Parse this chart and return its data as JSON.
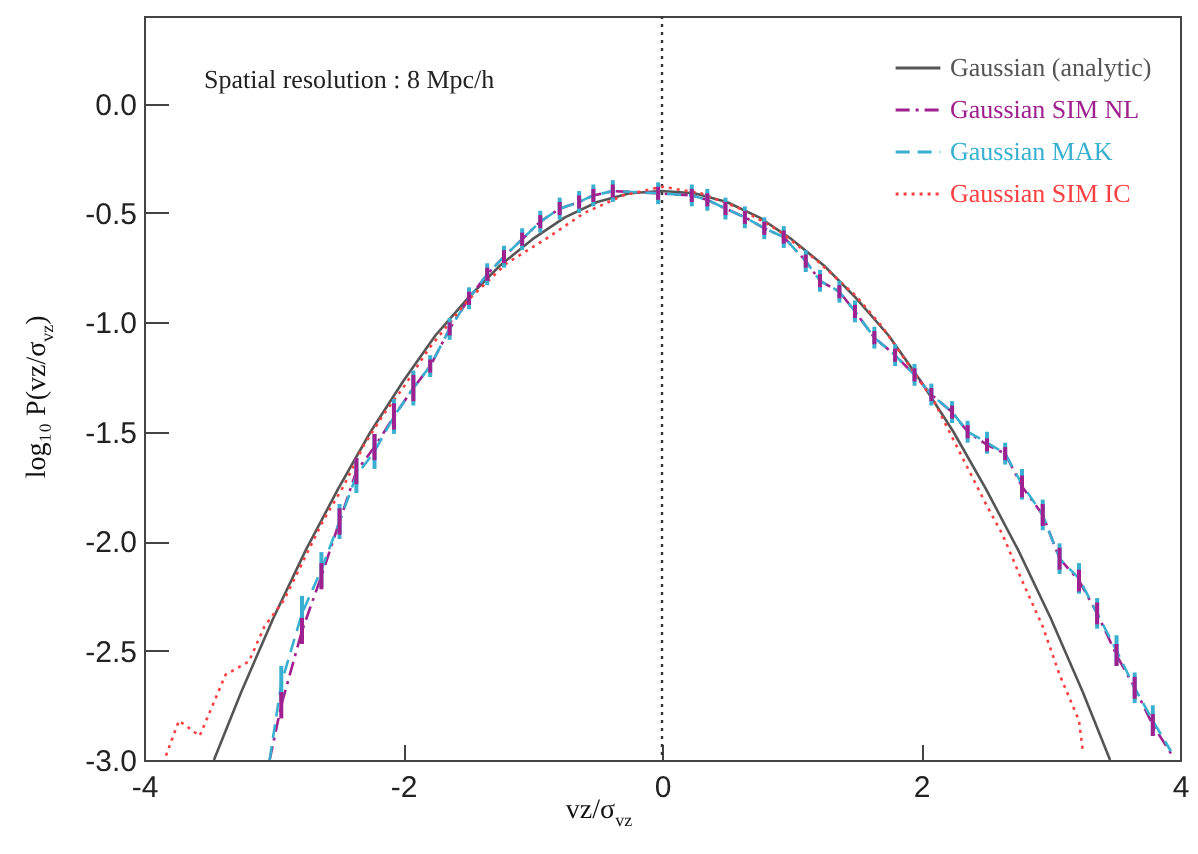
{
  "chart_data": {
    "type": "line",
    "xlabel": "vz/σ$_{vz}$",
    "ylabel": "log₁₀ P(vz/σ$_{vz}$)",
    "annotations": [
      "Spatial resolution : 8 Mpc/h"
    ],
    "xlim": [
      -4,
      4
    ],
    "xticks": [
      -4,
      -2,
      0,
      2,
      4
    ],
    "ylim": [
      -3,
      0.4
    ],
    "yticks": [
      {
        "value": 0,
        "label": "0.0"
      },
      {
        "value": -0.5,
        "label": "-0.5"
      },
      {
        "value": -1,
        "label": "-1.0"
      },
      {
        "value": -1.5,
        "label": "-1.5"
      },
      {
        "value": -2,
        "label": "-2.0"
      },
      {
        "value": -2.5,
        "label": "-2.5"
      },
      {
        "value": -3,
        "label": "-3.0"
      }
    ],
    "grid": false,
    "legend": "top right",
    "marker": "none",
    "ref_lines": [
      {
        "axis": "x",
        "value": 0,
        "color": "#333333",
        "line_style": "dotted"
      }
    ],
    "series": [
      {
        "name": "Gaussian (analytic)",
        "color": "#555555",
        "line_style": "solid",
        "x": [
          -3.46,
          -3.25,
          -3,
          -2.75,
          -2.5,
          -2.25,
          -2,
          -1.75,
          -1.5,
          -1.25,
          -1,
          -0.75,
          -0.5,
          -0.25,
          0,
          0.25,
          0.5,
          0.75,
          1,
          1.25,
          1.5,
          1.75,
          2,
          2.25,
          2.5,
          2.75,
          3,
          3.25,
          3.46
        ],
        "values": [
          -3.0,
          -2.69,
          -2.35,
          -2.04,
          -1.76,
          -1.5,
          -1.27,
          -1.06,
          -0.89,
          -0.74,
          -0.62,
          -0.52,
          -0.45,
          -0.41,
          -0.4,
          -0.41,
          -0.45,
          -0.52,
          -0.62,
          -0.74,
          -0.89,
          -1.06,
          -1.27,
          -1.5,
          -1.76,
          -2.04,
          -2.35,
          -2.69,
          -3.0
        ]
      },
      {
        "name": "Gaussian SIM NL",
        "color": "#a0208f",
        "line_style": "dashdot",
        "x": [
          -3.03,
          -2.94,
          -2.78,
          -2.63,
          -2.49,
          -2.36,
          -2.22,
          -2.07,
          -1.92,
          -1.79,
          -1.64,
          -1.49,
          -1.35,
          -1.22,
          -1.08,
          -0.94,
          -0.79,
          -0.64,
          -0.53,
          -0.38,
          -0.03,
          0.23,
          0.35,
          0.49,
          0.64,
          0.79,
          0.94,
          1.11,
          1.22,
          1.37,
          1.49,
          1.64,
          1.8,
          1.95,
          2.08,
          2.24,
          2.36,
          2.51,
          2.65,
          2.78,
          2.94,
          3.07,
          3.22,
          3.36,
          3.51,
          3.65,
          3.79,
          3.93
        ],
        "values": [
          -3.0,
          -2.75,
          -2.41,
          -2.16,
          -1.91,
          -1.68,
          -1.57,
          -1.43,
          -1.3,
          -1.2,
          -1.03,
          -0.89,
          -0.78,
          -0.7,
          -0.62,
          -0.54,
          -0.48,
          -0.45,
          -0.42,
          -0.4,
          -0.41,
          -0.42,
          -0.44,
          -0.48,
          -0.52,
          -0.57,
          -0.61,
          -0.72,
          -0.81,
          -0.86,
          -0.95,
          -1.07,
          -1.15,
          -1.24,
          -1.33,
          -1.41,
          -1.5,
          -1.56,
          -1.6,
          -1.75,
          -1.88,
          -2.08,
          -2.18,
          -2.33,
          -2.52,
          -2.67,
          -2.84,
          -2.97
        ],
        "errors": [
          null,
          0.06,
          0.06,
          0.06,
          0.06,
          0.06,
          0.06,
          0.06,
          0.06,
          0.03,
          0.03,
          0.03,
          0.03,
          0.03,
          0.03,
          0.03,
          0.03,
          0.03,
          0.03,
          0.03,
          0.03,
          0.03,
          0.03,
          0.03,
          0.03,
          0.03,
          0.03,
          0.03,
          0.03,
          0.03,
          0.03,
          0.03,
          0.03,
          0.03,
          0.03,
          0.03,
          0.03,
          0.03,
          0.03,
          0.05,
          0.05,
          0.05,
          0.05,
          0.05,
          0.05,
          0.05,
          0.05,
          null
        ]
      },
      {
        "name": "Gaussian MAK",
        "color": "#3ab0d0",
        "line_style": "dashed",
        "x": [
          -3.03,
          -2.94,
          -2.78,
          -2.63,
          -2.49,
          -2.36,
          -2.22,
          -2.07,
          -1.92,
          -1.79,
          -1.64,
          -1.49,
          -1.35,
          -1.22,
          -1.08,
          -0.94,
          -0.79,
          -0.64,
          -0.53,
          -0.38,
          -0.03,
          0.23,
          0.35,
          0.49,
          0.64,
          0.79,
          0.94,
          1.11,
          1.22,
          1.37,
          1.49,
          1.64,
          1.8,
          1.95,
          2.08,
          2.24,
          2.36,
          2.51,
          2.65,
          2.78,
          2.94,
          3.07,
          3.22,
          3.36,
          3.51,
          3.65,
          3.79,
          3.93
        ],
        "values": [
          -3.0,
          -2.65,
          -2.33,
          -2.13,
          -1.91,
          -1.7,
          -1.59,
          -1.43,
          -1.3,
          -1.2,
          -1.03,
          -0.89,
          -0.78,
          -0.7,
          -0.62,
          -0.54,
          -0.48,
          -0.45,
          -0.42,
          -0.4,
          -0.41,
          -0.42,
          -0.44,
          -0.48,
          -0.52,
          -0.57,
          -0.61,
          -0.72,
          -0.81,
          -0.86,
          -0.95,
          -1.07,
          -1.15,
          -1.24,
          -1.33,
          -1.41,
          -1.5,
          -1.55,
          -1.6,
          -1.74,
          -1.88,
          -2.08,
          -2.17,
          -2.33,
          -2.5,
          -2.67,
          -2.82,
          -2.96
        ],
        "errors": [
          null,
          0.08,
          0.08,
          0.08,
          0.08,
          0.08,
          0.08,
          0.08,
          0.08,
          0.05,
          0.05,
          0.05,
          0.05,
          0.05,
          0.05,
          0.05,
          0.05,
          0.05,
          0.05,
          0.05,
          0.05,
          0.05,
          0.05,
          0.05,
          0.05,
          0.05,
          0.05,
          0.05,
          0.05,
          0.05,
          0.05,
          0.05,
          0.05,
          0.05,
          0.05,
          0.05,
          0.05,
          0.05,
          0.05,
          0.07,
          0.07,
          0.07,
          0.07,
          0.07,
          0.07,
          0.07,
          0.07,
          null
        ]
      },
      {
        "name": "Gaussian SIM IC",
        "color": "#ff4040",
        "line_style": "dotted",
        "x": [
          -3.83,
          -3.73,
          -3.57,
          -3.37,
          -3.19,
          -3.07,
          -2.92,
          -2.77,
          -2.62,
          -2.46,
          -2.31,
          -2.15,
          -2.0,
          -1.8,
          -1.5,
          -1.2,
          -0.9,
          -0.6,
          -0.3,
          0,
          0.3,
          0.6,
          0.9,
          1.2,
          1.5,
          1.7,
          2.1,
          2.33,
          2.51,
          2.63,
          2.78,
          2.94,
          3.07,
          3.22,
          3.25
        ],
        "values": [
          -2.98,
          -2.82,
          -2.89,
          -2.61,
          -2.55,
          -2.39,
          -2.27,
          -2.09,
          -1.91,
          -1.75,
          -1.57,
          -1.42,
          -1.3,
          -1.12,
          -0.9,
          -0.73,
          -0.62,
          -0.5,
          -0.42,
          -0.38,
          -0.41,
          -0.48,
          -0.58,
          -0.72,
          -0.88,
          -1.02,
          -1.36,
          -1.63,
          -1.84,
          -1.97,
          -2.18,
          -2.39,
          -2.61,
          -2.82,
          -2.96
        ]
      }
    ]
  }
}
